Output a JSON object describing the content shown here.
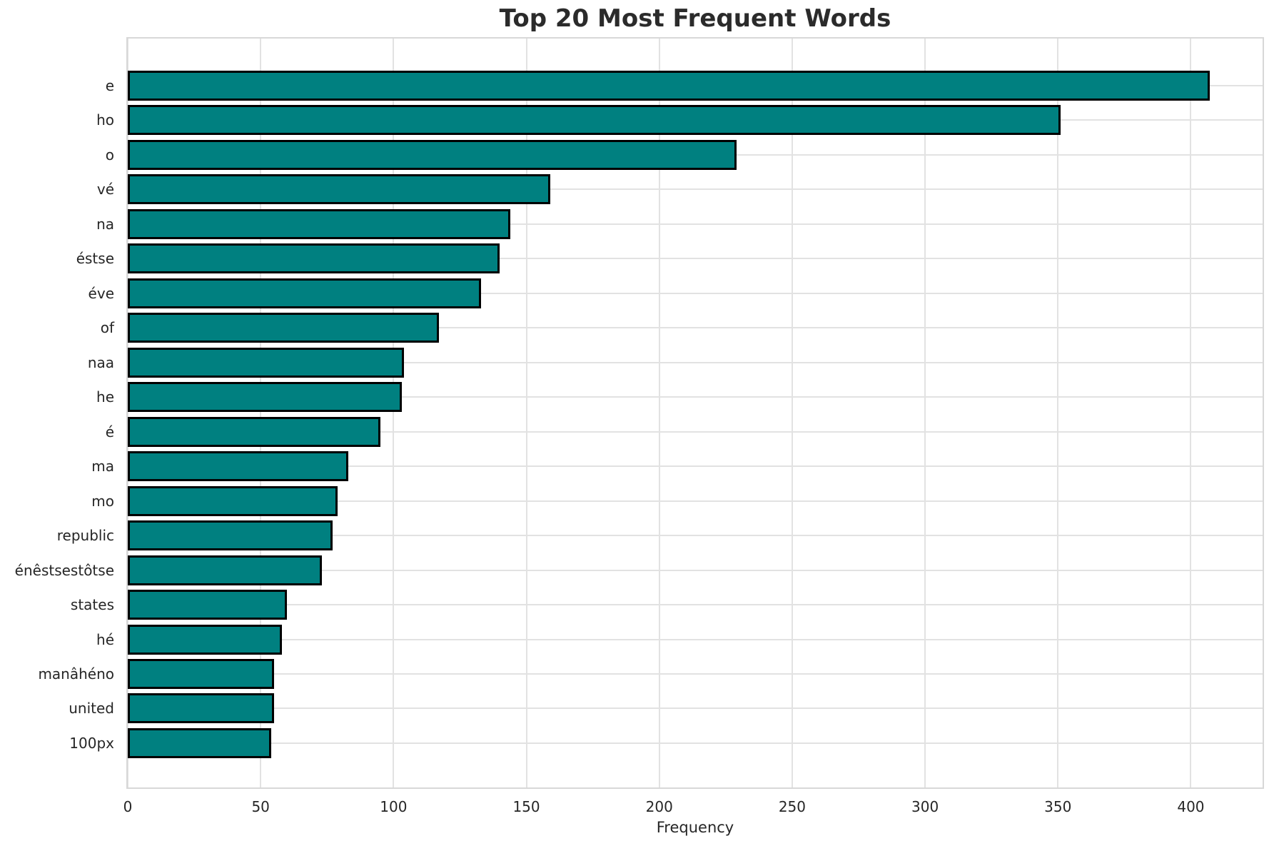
{
  "chart_data": {
    "type": "bar",
    "orientation": "horizontal",
    "title": "Top 20 Most Frequent Words",
    "xlabel": "Frequency",
    "ylabel": "",
    "categories": [
      "e",
      "ho",
      "o",
      "vé",
      "na",
      "éstse",
      "éve",
      "of",
      "naa",
      "he",
      "é",
      "ma",
      "mo",
      "republic",
      "énêstsestôtse",
      "states",
      "hé",
      "manâhéno",
      "united",
      "100px"
    ],
    "values": [
      407,
      351,
      229,
      159,
      144,
      140,
      133,
      117,
      104,
      103,
      95,
      83,
      79,
      77,
      73,
      60,
      58,
      55,
      55,
      54
    ],
    "xticks": [
      0,
      50,
      100,
      150,
      200,
      250,
      300,
      350,
      400
    ],
    "xlim": [
      0,
      427
    ],
    "grid": true,
    "legend": false,
    "bar_color": "#008080",
    "bar_edge_color": "#000000",
    "grid_color": "#e2e2e2",
    "text_color": "#262626"
  }
}
